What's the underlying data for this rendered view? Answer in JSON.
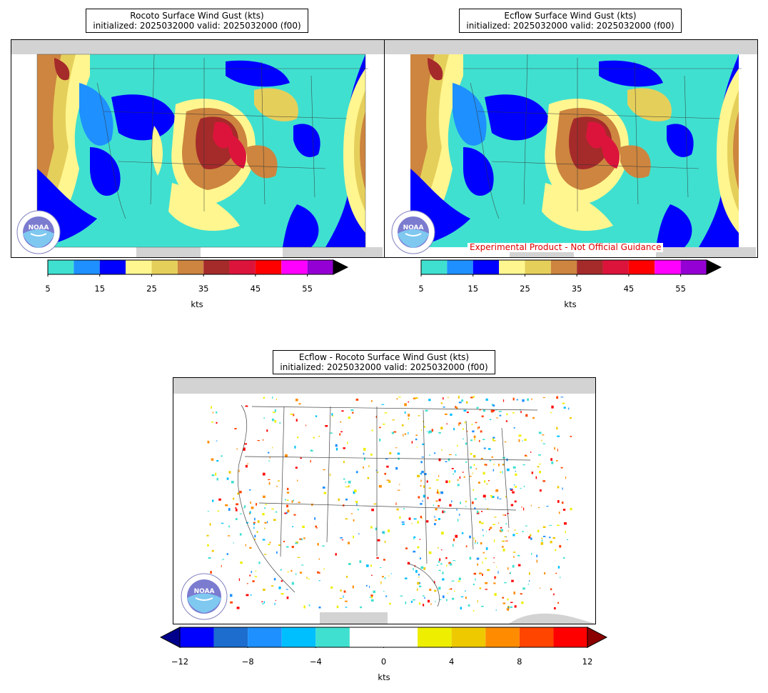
{
  "panels": [
    {
      "title_line1": "Rocoto Surface Wind Gust (kts)",
      "title_line2": "initialized: 2025032000 valid: 2025032000 (f00)"
    },
    {
      "title_line1": "Ecflow Surface Wind Gust (kts)",
      "title_line2": "initialized: 2025032000 valid: 2025032000 (f00)",
      "disclaimer": "Experimental Product - Not Official Guidance"
    },
    {
      "title_line1": "Ecflow - Rocoto Surface Wind Gust (kts)",
      "title_line2": "initialized: 2025032000 valid: 2025032000 (f00)"
    }
  ],
  "gust_colorbar": {
    "unit": "kts",
    "ticks": [
      "5",
      "15",
      "25",
      "35",
      "45",
      "55"
    ],
    "colors": [
      "#40e0d0",
      "#1e90ff",
      "#0000ff",
      "#fff68f",
      "#e5cf5b",
      "#cd853f",
      "#a52a2a",
      "#dc143c",
      "#ff0000",
      "#ff00ff",
      "#9400d3"
    ],
    "extend_color": "#000000"
  },
  "diff_colorbar": {
    "unit": "kts",
    "ticks": [
      "−12",
      "−8",
      "−4",
      "0",
      "4",
      "8",
      "12"
    ],
    "colors": [
      "#0000ff",
      "#1c6dce",
      "#1e90ff",
      "#00bfff",
      "#40e0d0",
      "#ffffff",
      "#ffffff",
      "#eeee00",
      "#eec900",
      "#ff8c00",
      "#ff4500",
      "#ff0000"
    ],
    "extend_low": "#00008b",
    "extend_high": "#8b0000"
  },
  "logo": {
    "text": "NOAA",
    "icon": "noaa-logo-icon"
  }
}
